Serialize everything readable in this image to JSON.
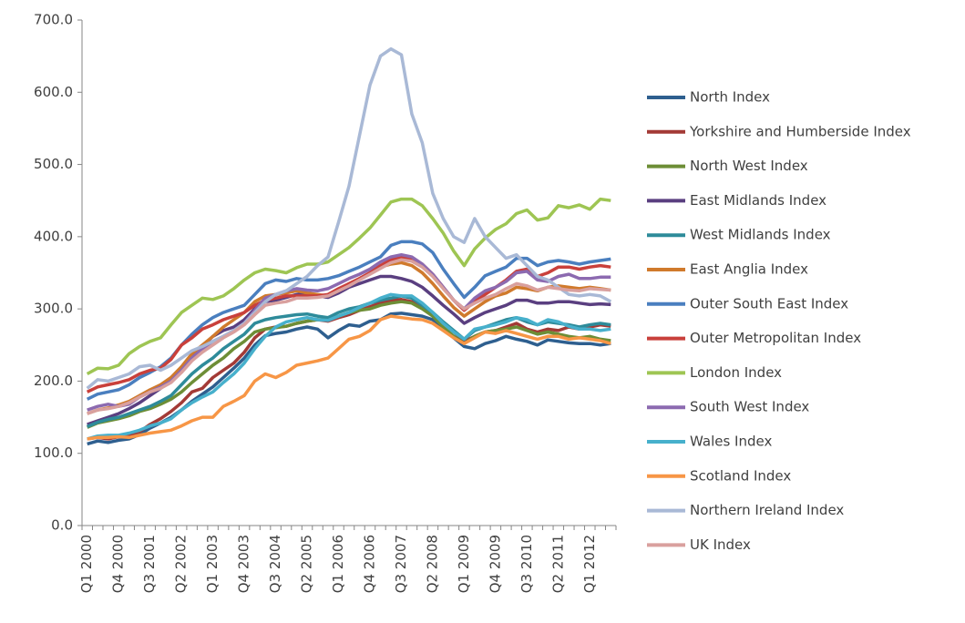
{
  "chart_data": {
    "type": "line",
    "categories": [
      "Q1 2000",
      null,
      null,
      "Q4 2000",
      null,
      null,
      "Q3 2001",
      null,
      null,
      "Q2 2002",
      null,
      null,
      "Q1 2003",
      null,
      null,
      "Q4 2003",
      null,
      null,
      "Q3 2004",
      null,
      null,
      "Q2 2005",
      null,
      null,
      "Q1 2006",
      null,
      null,
      "Q4 2006",
      null,
      null,
      "Q3 2007",
      null,
      null,
      "Q2 2008",
      null,
      null,
      "Q1 2009",
      null,
      null,
      "Q4 2009",
      null,
      null,
      "Q3 2010",
      null,
      null,
      "Q2 2011",
      null,
      null,
      "Q1 2012",
      null,
      null
    ],
    "ylim": [
      0,
      700
    ],
    "yticks": [
      {
        "value": 0,
        "label": "0.0"
      },
      {
        "value": 100,
        "label": "100.0"
      },
      {
        "value": 200,
        "label": "200.0"
      },
      {
        "value": 300,
        "label": "300.0"
      },
      {
        "value": 400,
        "label": "400.0"
      },
      {
        "value": 500,
        "label": "500.0"
      },
      {
        "value": 600,
        "label": "600.0"
      },
      {
        "value": 700,
        "label": "700.0"
      }
    ],
    "grid": false,
    "legend": "right",
    "series": [
      {
        "name": "North Index",
        "color": "#2e5f8f",
        "values": [
          113,
          117,
          115,
          118,
          120,
          126,
          135,
          142,
          150,
          160,
          172,
          182,
          192,
          205,
          218,
          232,
          250,
          263,
          266,
          268,
          272,
          275,
          272,
          260,
          270,
          278,
          276,
          283,
          285,
          293,
          294,
          292,
          290,
          285,
          272,
          260,
          248,
          245,
          252,
          256,
          262,
          258,
          255,
          250,
          257,
          255,
          253,
          252,
          252,
          250,
          252
        ]
      },
      {
        "name": "Yorkshire and Humberside Index",
        "color": "#a33a36",
        "values": [
          120,
          122,
          120,
          123,
          125,
          130,
          140,
          148,
          158,
          170,
          185,
          190,
          205,
          215,
          225,
          240,
          260,
          272,
          275,
          276,
          280,
          283,
          285,
          283,
          288,
          292,
          298,
          303,
          308,
          312,
          313,
          310,
          303,
          293,
          280,
          268,
          255,
          262,
          268,
          270,
          275,
          280,
          272,
          268,
          272,
          270,
          275,
          272,
          275,
          278,
          276
        ]
      },
      {
        "name": "North West Index",
        "color": "#6d8e36",
        "values": [
          136,
          142,
          145,
          148,
          152,
          158,
          162,
          168,
          175,
          185,
          198,
          210,
          222,
          232,
          245,
          255,
          268,
          272,
          274,
          276,
          280,
          283,
          285,
          285,
          290,
          295,
          298,
          300,
          305,
          308,
          310,
          308,
          300,
          290,
          275,
          262,
          252,
          262,
          268,
          270,
          272,
          275,
          270,
          265,
          268,
          265,
          262,
          260,
          262,
          258,
          256
        ]
      },
      {
        "name": "East Midlands Index",
        "color": "#5a3f80",
        "values": [
          140,
          145,
          150,
          155,
          162,
          170,
          180,
          190,
          202,
          218,
          232,
          248,
          262,
          270,
          275,
          285,
          300,
          310,
          312,
          316,
          320,
          320,
          318,
          316,
          322,
          330,
          335,
          340,
          345,
          345,
          342,
          338,
          330,
          318,
          305,
          293,
          280,
          288,
          295,
          300,
          305,
          312,
          312,
          308,
          308,
          310,
          310,
          308,
          306,
          307,
          306
        ]
      },
      {
        "name": "West Midlands Index",
        "color": "#2e8b9a",
        "values": [
          137,
          143,
          147,
          150,
          155,
          160,
          165,
          172,
          180,
          195,
          210,
          222,
          232,
          245,
          255,
          265,
          280,
          285,
          288,
          290,
          292,
          293,
          290,
          288,
          295,
          300,
          303,
          308,
          312,
          315,
          318,
          315,
          305,
          295,
          282,
          270,
          258,
          270,
          275,
          280,
          285,
          288,
          282,
          278,
          282,
          280,
          278,
          275,
          278,
          280,
          278
        ]
      },
      {
        "name": "East Anglia Index",
        "color": "#d07a2c",
        "values": [
          155,
          160,
          163,
          167,
          172,
          180,
          188,
          195,
          205,
          220,
          238,
          250,
          262,
          275,
          285,
          295,
          310,
          318,
          320,
          322,
          325,
          322,
          320,
          318,
          325,
          335,
          342,
          350,
          358,
          362,
          364,
          360,
          350,
          335,
          318,
          302,
          290,
          300,
          310,
          318,
          322,
          330,
          328,
          325,
          330,
          332,
          330,
          328,
          330,
          328,
          326
        ]
      },
      {
        "name": "Outer South East Index",
        "color": "#4a7fbf",
        "values": [
          175,
          182,
          185,
          188,
          195,
          205,
          212,
          220,
          232,
          250,
          265,
          278,
          288,
          295,
          300,
          305,
          320,
          335,
          340,
          338,
          342,
          340,
          340,
          342,
          346,
          352,
          358,
          365,
          372,
          388,
          393,
          393,
          390,
          378,
          355,
          335,
          316,
          330,
          346,
          352,
          358,
          370,
          370,
          360,
          365,
          367,
          365,
          362,
          365,
          367,
          369
        ]
      },
      {
        "name": "Outer Metropolitan Index",
        "color": "#c9403b",
        "values": [
          185,
          192,
          195,
          198,
          202,
          210,
          215,
          218,
          230,
          250,
          260,
          272,
          278,
          285,
          290,
          295,
          305,
          312,
          315,
          318,
          318,
          318,
          318,
          320,
          328,
          335,
          342,
          350,
          360,
          368,
          372,
          370,
          362,
          348,
          330,
          312,
          298,
          310,
          320,
          330,
          340,
          352,
          355,
          345,
          350,
          358,
          358,
          355,
          358,
          360,
          358
        ]
      },
      {
        "name": "London Index",
        "color": "#9ec553",
        "values": [
          210,
          218,
          217,
          222,
          238,
          248,
          255,
          260,
          278,
          295,
          305,
          315,
          313,
          318,
          328,
          340,
          350,
          355,
          353,
          350,
          357,
          362,
          362,
          365,
          375,
          385,
          398,
          412,
          430,
          448,
          452,
          452,
          443,
          425,
          405,
          380,
          360,
          383,
          398,
          410,
          418,
          432,
          437,
          423,
          426,
          443,
          440,
          444,
          438,
          452,
          450
        ]
      },
      {
        "name": "South West Index",
        "color": "#8c6ab0",
        "values": [
          160,
          165,
          168,
          165,
          168,
          178,
          185,
          192,
          200,
          215,
          232,
          245,
          255,
          262,
          270,
          280,
          298,
          315,
          320,
          325,
          328,
          326,
          325,
          328,
          335,
          342,
          348,
          355,
          365,
          372,
          375,
          372,
          362,
          348,
          330,
          312,
          300,
          315,
          325,
          330,
          338,
          350,
          352,
          340,
          338,
          345,
          348,
          342,
          342,
          344,
          344
        ]
      },
      {
        "name": "Wales Index",
        "color": "#47b0cc",
        "values": [
          120,
          124,
          125,
          125,
          128,
          132,
          138,
          142,
          148,
          160,
          170,
          178,
          185,
          198,
          210,
          225,
          245,
          262,
          275,
          282,
          285,
          288,
          285,
          284,
          290,
          295,
          302,
          308,
          315,
          320,
          318,
          318,
          308,
          295,
          280,
          268,
          258,
          272,
          275,
          278,
          282,
          288,
          285,
          278,
          285,
          282,
          276,
          272,
          272,
          270,
          272
        ]
      },
      {
        "name": "Scotland Index",
        "color": "#f79646",
        "values": [
          120,
          122,
          122,
          123,
          122,
          125,
          128,
          130,
          132,
          138,
          145,
          150,
          150,
          165,
          172,
          180,
          200,
          210,
          205,
          212,
          222,
          225,
          228,
          232,
          245,
          258,
          262,
          270,
          285,
          290,
          288,
          286,
          285,
          280,
          270,
          260,
          252,
          260,
          268,
          266,
          270,
          266,
          262,
          258,
          262,
          262,
          258,
          260,
          258,
          256,
          252
        ]
      },
      {
        "name": "Northern Ireland Index",
        "color": "#a9b9d6",
        "values": [
          190,
          202,
          200,
          205,
          210,
          220,
          222,
          215,
          222,
          232,
          242,
          248,
          255,
          262,
          270,
          280,
          295,
          310,
          320,
          325,
          335,
          345,
          360,
          372,
          420,
          470,
          540,
          610,
          650,
          660,
          652,
          570,
          530,
          460,
          425,
          400,
          392,
          425,
          400,
          385,
          370,
          375,
          360,
          345,
          340,
          330,
          320,
          318,
          320,
          318,
          310
        ]
      },
      {
        "name": "UK Index",
        "color": "#d9a09e",
        "values": [
          155,
          160,
          162,
          165,
          170,
          178,
          185,
          190,
          198,
          212,
          228,
          240,
          250,
          260,
          268,
          278,
          292,
          305,
          308,
          310,
          315,
          315,
          316,
          318,
          325,
          332,
          340,
          348,
          356,
          364,
          368,
          366,
          358,
          345,
          328,
          312,
          300,
          308,
          315,
          320,
          328,
          335,
          332,
          326,
          330,
          328,
          326,
          325,
          328,
          327,
          326
        ]
      }
    ]
  }
}
